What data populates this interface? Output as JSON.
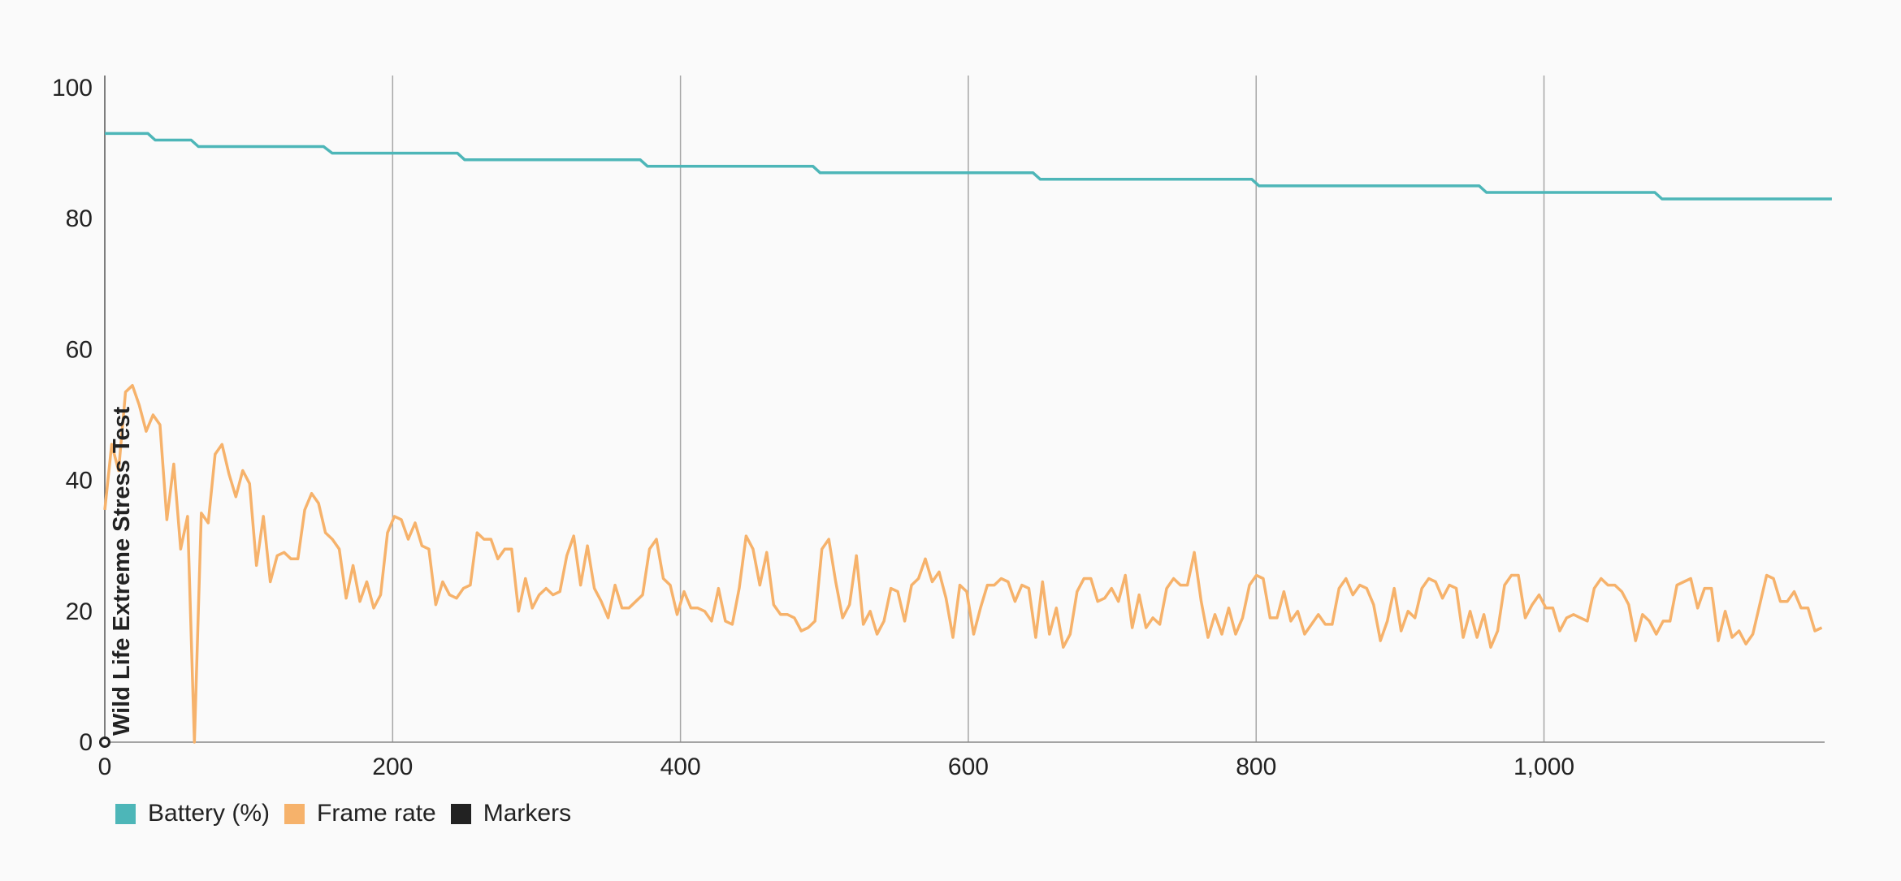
{
  "chart_data": {
    "type": "line",
    "x_range": [
      0,
      1200
    ],
    "y_range": [
      0,
      100
    ],
    "x_ticks": [
      0,
      200,
      400,
      600,
      800,
      1000
    ],
    "x_tick_labels": [
      "0",
      "200",
      "400",
      "600",
      "800",
      "1,000"
    ],
    "y_ticks": [
      0,
      20,
      40,
      60,
      80,
      100
    ],
    "y_tick_labels": [
      "0",
      "20",
      "40",
      "60",
      "80",
      "100"
    ],
    "grid": "vertical",
    "legend_position": "bottom-left",
    "series": [
      {
        "name": "Battery (%)",
        "color": "#4db6b8",
        "style": "step",
        "points": [
          [
            0,
            93
          ],
          [
            30,
            93
          ],
          [
            35,
            92
          ],
          [
            60,
            92
          ],
          [
            65,
            91
          ],
          [
            152,
            91
          ],
          [
            158,
            90
          ],
          [
            245,
            90
          ],
          [
            250,
            89
          ],
          [
            372,
            89
          ],
          [
            377,
            88
          ],
          [
            492,
            88
          ],
          [
            497,
            87
          ],
          [
            645,
            87
          ],
          [
            650,
            86
          ],
          [
            797,
            86
          ],
          [
            802,
            85
          ],
          [
            955,
            85
          ],
          [
            960,
            84
          ],
          [
            1077,
            84
          ],
          [
            1082,
            83
          ],
          [
            1200,
            83
          ]
        ]
      },
      {
        "name": "Frame rate",
        "color": "#f6b26b",
        "style": "line",
        "values": [
          35.5,
          45.5,
          41.5,
          53.5,
          54.5,
          51.5,
          47.5,
          50,
          48.5,
          34,
          42.5,
          29.5,
          34.5,
          0,
          35,
          33.5,
          44,
          45.5,
          41,
          37.5,
          41.5,
          39.5,
          27,
          34.5,
          24.5,
          28.5,
          29,
          28,
          28,
          35.5,
          38,
          36.5,
          32,
          31,
          29.5,
          22,
          27,
          21.5,
          24.5,
          20.5,
          22.5,
          32,
          34.5,
          34,
          31,
          33.5,
          30,
          29.5,
          21,
          24.5,
          22.5,
          22,
          23.5,
          24,
          32,
          31,
          31,
          28,
          29.5,
          29.5,
          20,
          25,
          20.5,
          22.5,
          23.5,
          22.5,
          23,
          28.5,
          31.5,
          24,
          30,
          23.5,
          21.5,
          19,
          24,
          20.5,
          20.5,
          21.5,
          22.5,
          29.5,
          31,
          25,
          24,
          19.5,
          23,
          20.5,
          20.5,
          20,
          18.5,
          23.5,
          18.5,
          18,
          23.5,
          31.5,
          29.5,
          24,
          29,
          21,
          19.5,
          19.5,
          19,
          17,
          17.5,
          18.5,
          29.5,
          31,
          24.5,
          19,
          21,
          28.5,
          18,
          20,
          16.5,
          18.5,
          23.5,
          23,
          18.5,
          24,
          25,
          28,
          24.5,
          26,
          22,
          16,
          24,
          23,
          16.5,
          20.5,
          24,
          24,
          25,
          24.5,
          21.5,
          24,
          23.5,
          16,
          24.5,
          16.5,
          20.5,
          14.5,
          16.5,
          23,
          25,
          25,
          21.5,
          22,
          23.5,
          21.5,
          25.5,
          17.5,
          22.5,
          17.5,
          19,
          18,
          23.5,
          25,
          24,
          24,
          29,
          21.5,
          16,
          19.5,
          16.5,
          20.5,
          16.5,
          19,
          24,
          25.5,
          25,
          19,
          19,
          23,
          18.5,
          20,
          16.5,
          18,
          19.5,
          18,
          18,
          23.5,
          25,
          22.5,
          24,
          23.5,
          21,
          15.5,
          18.5,
          23.5,
          17,
          20,
          19,
          23.5,
          25,
          24.5,
          22,
          24,
          23.5,
          16,
          20,
          16,
          19.5,
          14.5,
          17,
          24,
          25.5,
          25.5,
          19,
          21,
          22.5,
          20.5,
          20.5,
          17,
          19,
          19.5,
          19,
          18.5,
          23.5,
          25,
          24,
          24,
          23,
          21,
          15.5,
          19.5,
          18.5,
          16.5,
          18.5,
          18.5,
          24,
          24.5,
          25,
          20.5,
          23.5,
          23.5,
          15.5,
          20,
          16,
          17,
          15,
          16.5,
          21,
          25.5,
          25,
          21.5,
          21.5,
          23,
          20.5,
          20.5,
          17,
          17.5
        ]
      },
      {
        "name": "Markers",
        "color": "#222222",
        "style": "marker",
        "markers": [
          {
            "x": 0,
            "label": "Wild Life Extreme Stress Test"
          }
        ]
      }
    ]
  }
}
